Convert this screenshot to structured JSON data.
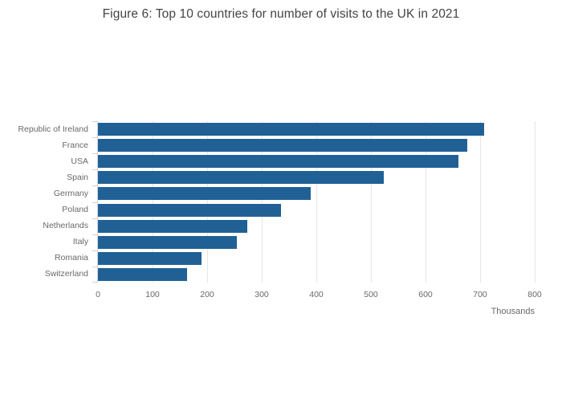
{
  "chart_data": {
    "type": "bar",
    "orientation": "horizontal",
    "title": "Figure 6: Top 10 countries for number of visits to the UK in 2021",
    "xlabel": "Thousands",
    "ylabel": "",
    "categories": [
      "Republic of Ireland",
      "France",
      "USA",
      "Spain",
      "Germany",
      "Poland",
      "Netherlands",
      "Italy",
      "Romania",
      "Switzerland"
    ],
    "values": [
      708,
      677,
      661,
      524,
      390,
      335,
      273,
      254,
      189,
      163
    ],
    "xlim": [
      0,
      800
    ],
    "xticks": [
      0,
      100,
      200,
      300,
      400,
      500,
      600,
      700,
      800
    ],
    "grid": true,
    "legend": "none",
    "colors": {
      "bar": "#206095",
      "gridline": "#e5e5e5",
      "axis_line": "#c8d4e3",
      "tick_label": "#696969",
      "title": "#444444",
      "background": "#ffffff"
    }
  }
}
